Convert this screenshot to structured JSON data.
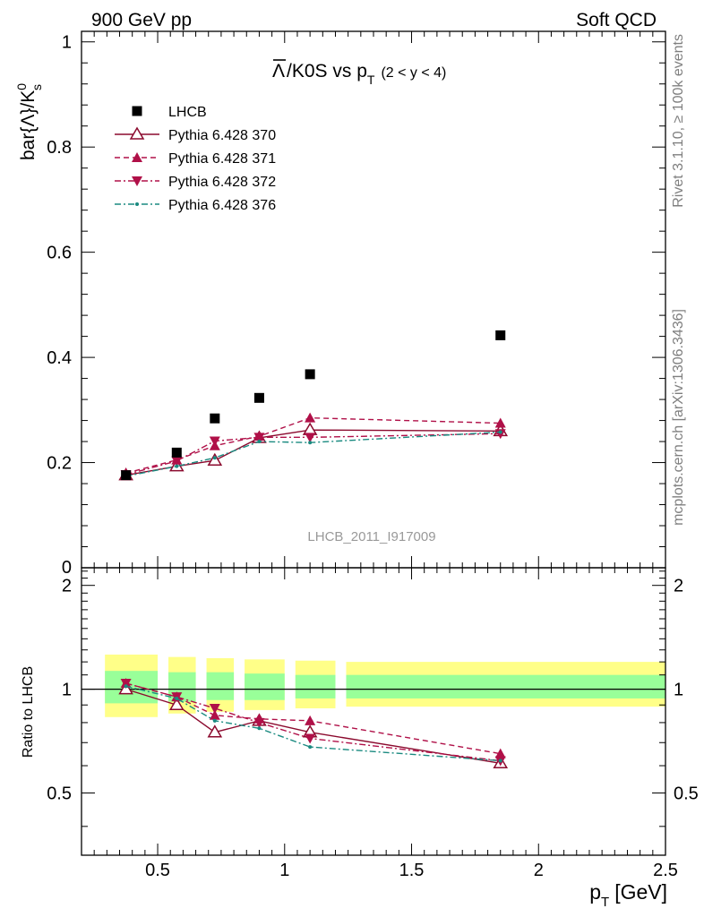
{
  "header": {
    "left": "900 GeV pp",
    "right": "Soft QCD"
  },
  "side_labels": {
    "rivet": "Rivet 3.1.10, ≥ 100k events",
    "mcplots": "mcplots.cern.ch [arXiv:1306.3436]"
  },
  "chart_data": {
    "type": "scatter",
    "title": "Λ̄/K0S vs p_T (2 < y < 4)",
    "title_main": "/K0S vs p",
    "title_overline": "Λ",
    "title_sub": "T",
    "title_range": "(2 < y < 4)",
    "analysis_id": "LHCB_2011_I917009",
    "ylabel_main": "bar{Λ}/K",
    "ylabel_sup": "0",
    "ylabel_sub": "s",
    "ratio_ylabel": "Ratio to LHCB",
    "xlabel_main": "p",
    "xlabel_sub": "T",
    "xlabel_unit": "[GeV]",
    "xlim": [
      0.2,
      2.5
    ],
    "ylim": [
      0,
      1.02
    ],
    "ratio_ylim": [
      0.33,
      2.25
    ],
    "xticks": [
      "0.5",
      "1",
      "1.5",
      "2",
      "2.5"
    ],
    "yticks": [
      "0.2",
      "0.4",
      "0.6",
      "0.8",
      "1"
    ],
    "ytick_zero": "0",
    "ratio_yticks": [
      "0.5",
      "1",
      "2"
    ],
    "x": [
      0.375,
      0.575,
      0.725,
      0.9,
      1.1,
      1.85
    ],
    "series": [
      {
        "name": "LHCB",
        "color": "#000000",
        "marker": "square",
        "values": [
          0.176,
          0.219,
          0.284,
          0.323,
          0.368,
          0.442
        ]
      },
      {
        "name": "Pythia 6.428 370",
        "color": "#8b0a2e",
        "marker": "open-triangle-up",
        "line": "solid",
        "values": [
          0.176,
          0.193,
          0.204,
          0.247,
          0.262,
          0.26
        ]
      },
      {
        "name": "Pythia 6.428 371",
        "color": "#b01048",
        "marker": "triangle-up",
        "line": "dashed",
        "values": [
          0.18,
          0.205,
          0.232,
          0.25,
          0.285,
          0.275
        ]
      },
      {
        "name": "Pythia 6.428 372",
        "color": "#b01048",
        "marker": "triangle-down",
        "line": "dashdot",
        "values": [
          0.177,
          0.203,
          0.241,
          0.248,
          0.248,
          0.255
        ]
      },
      {
        "name": "Pythia 6.428 376",
        "color": "#1a8a80",
        "marker": "dot",
        "line": "dashdot",
        "values": [
          0.174,
          0.193,
          0.209,
          0.24,
          0.238,
          0.258
        ]
      }
    ],
    "ratio_series": [
      {
        "name": "Pythia 6.428 370",
        "values": [
          1.0,
          0.9,
          0.75,
          0.81,
          0.75,
          0.61
        ]
      },
      {
        "name": "Pythia 6.428 371",
        "values": [
          1.04,
          0.95,
          0.84,
          0.82,
          0.81,
          0.65
        ]
      },
      {
        "name": "Pythia 6.428 372",
        "values": [
          1.04,
          0.95,
          0.88,
          0.8,
          0.72,
          0.62
        ]
      },
      {
        "name": "Pythia 6.428 376",
        "values": [
          1.02,
          0.94,
          0.81,
          0.77,
          0.68,
          0.62
        ]
      }
    ],
    "ratio_bands": {
      "yellow": "#ffff88",
      "green": "#99ff99",
      "edges": [
        0.25,
        0.5,
        0.65,
        0.8,
        1.0,
        1.2,
        2.5
      ],
      "yellow_lo": [
        0.83,
        0.85,
        0.86,
        0.87,
        0.88,
        0.89
      ],
      "yellow_hi": [
        1.26,
        1.24,
        1.23,
        1.22,
        1.21,
        1.2
      ],
      "green_lo": [
        0.91,
        0.92,
        0.93,
        0.93,
        0.94,
        0.94
      ],
      "green_hi": [
        1.13,
        1.12,
        1.12,
        1.11,
        1.1,
        1.1
      ]
    }
  }
}
